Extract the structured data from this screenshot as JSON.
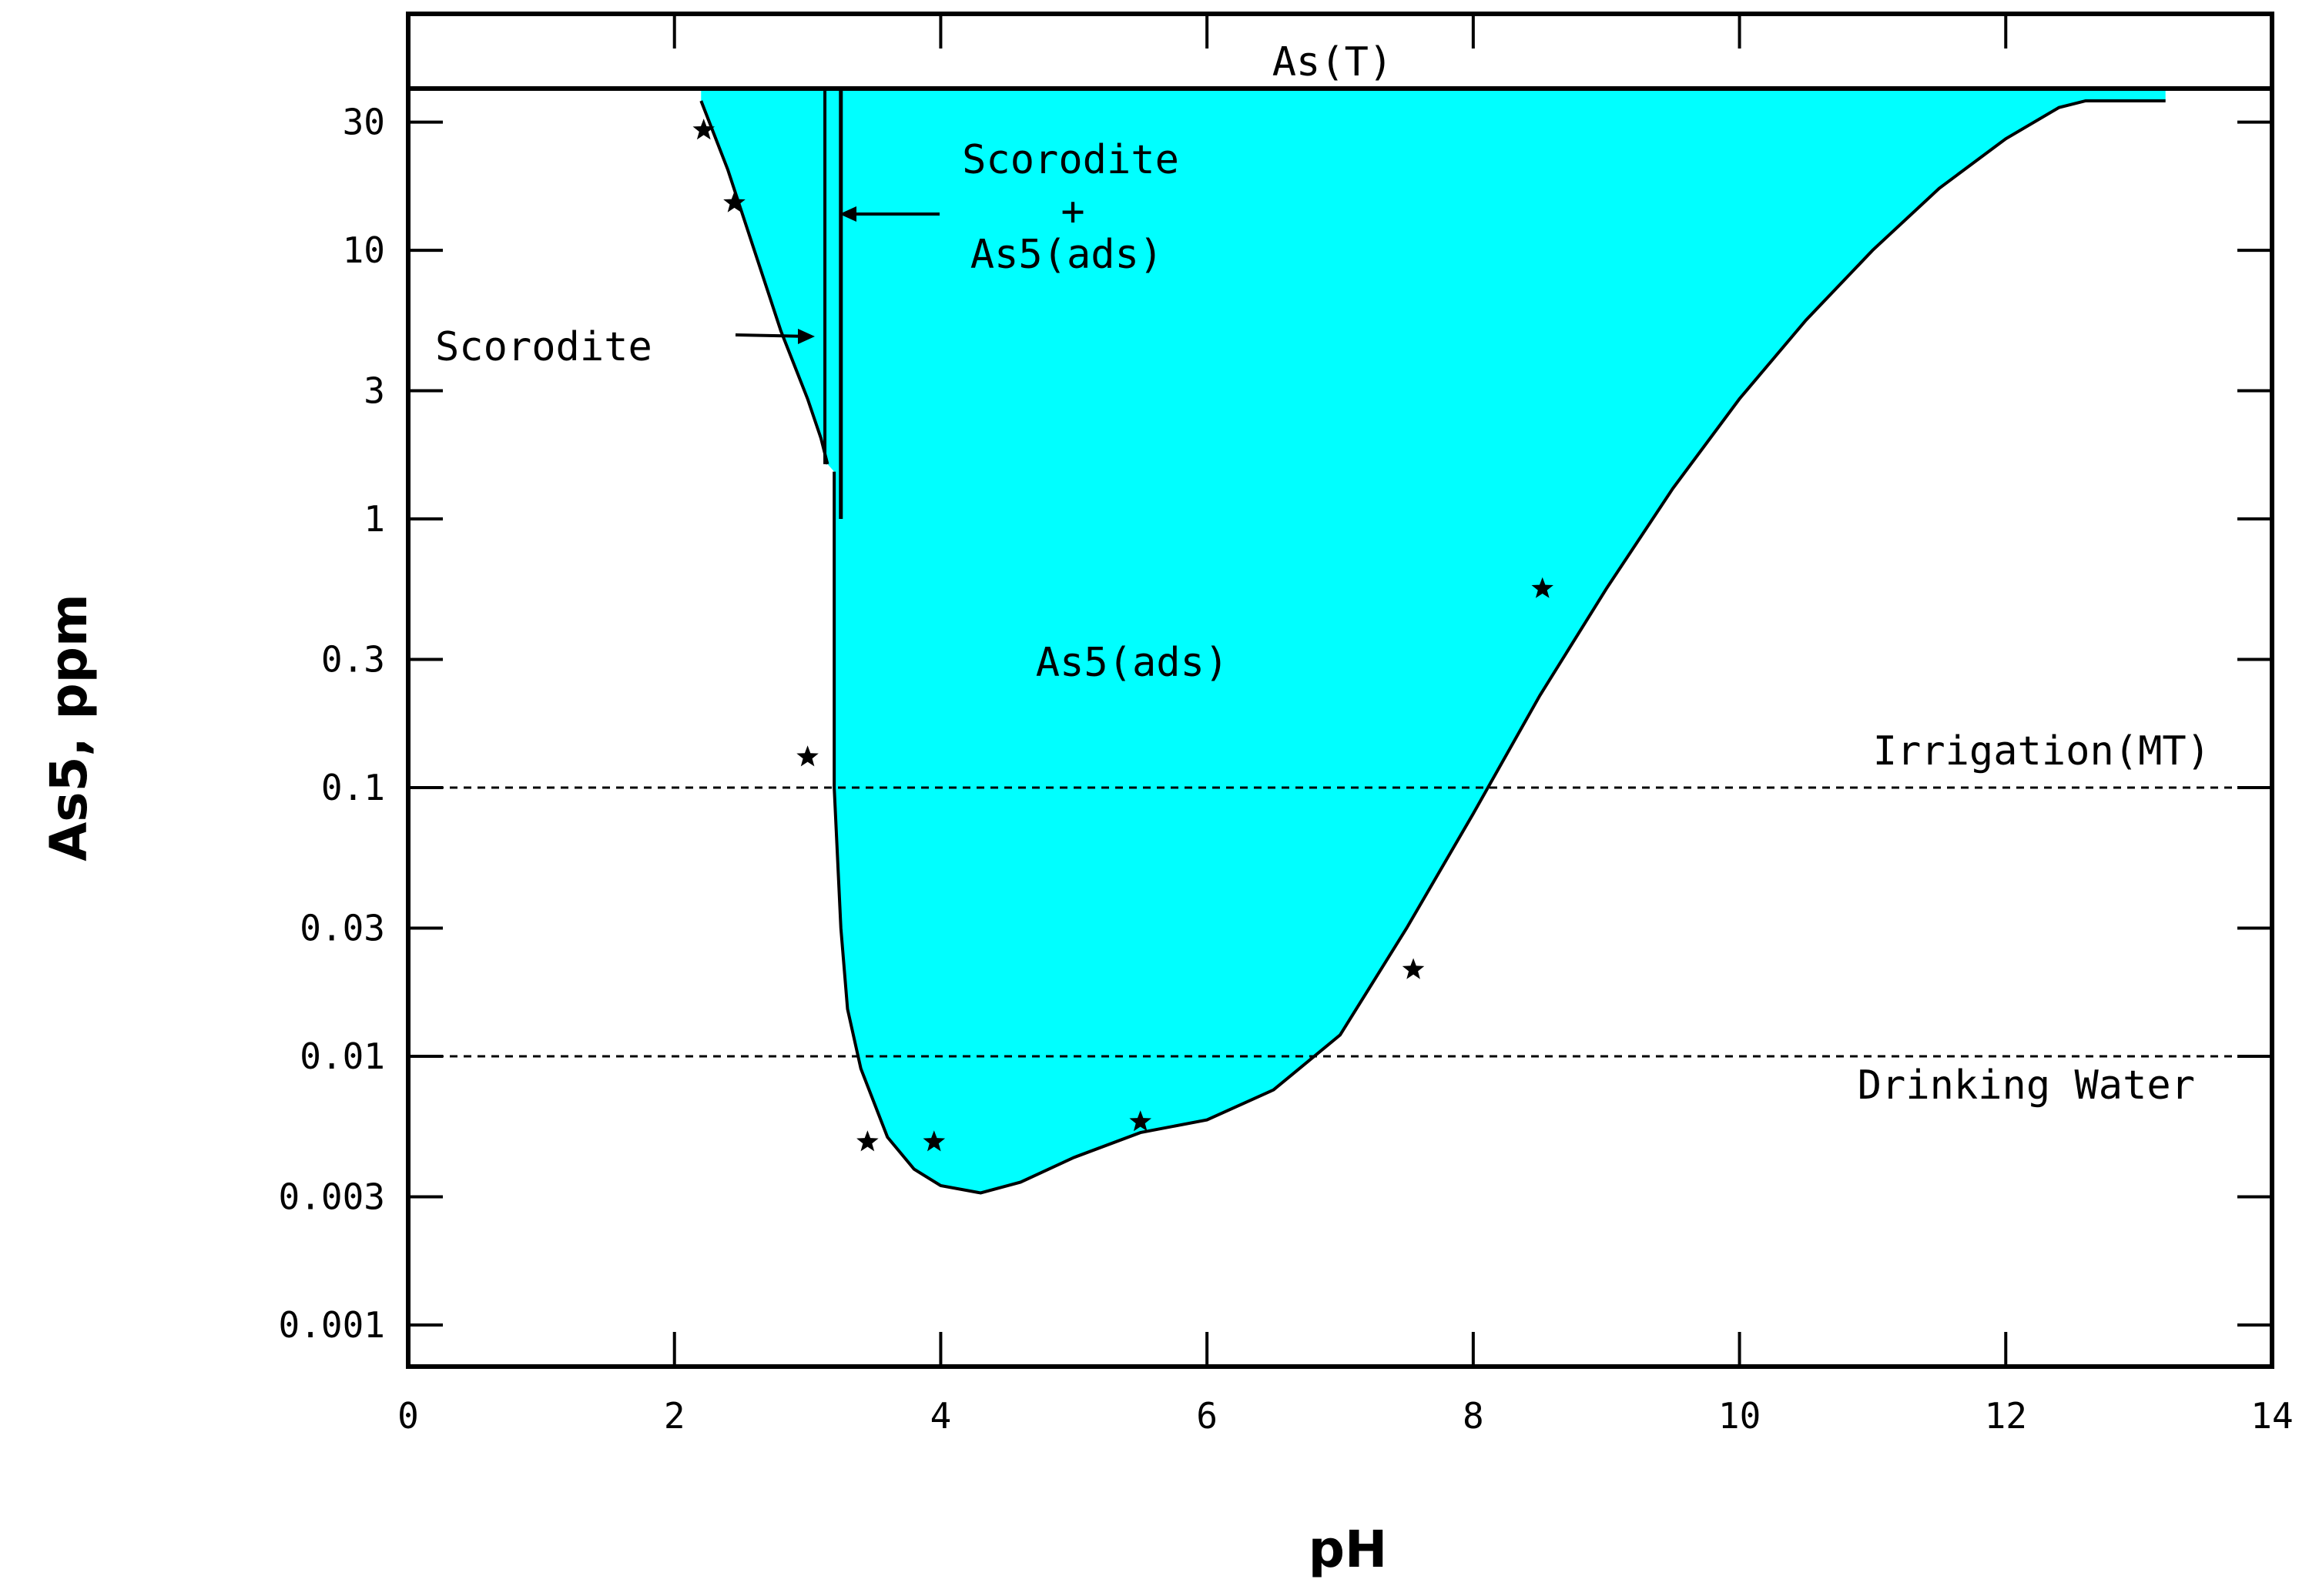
{
  "chart_data": {
    "type": "area",
    "xlabel": "pH",
    "ylabel": "As5, ppm",
    "xlim": [
      0,
      14
    ],
    "ylim": [
      0.0007,
      40
    ],
    "y_scale": "log",
    "grid": false,
    "x_ticks": [
      0,
      2,
      4,
      6,
      8,
      10,
      12,
      14
    ],
    "x_tick_labels": [
      "0",
      "2",
      "4",
      "6",
      "8",
      "10",
      "12",
      "14"
    ],
    "y_ticks": [
      0.001,
      0.003,
      0.01,
      0.03,
      0.1,
      0.3,
      1,
      3,
      10,
      30
    ],
    "y_tick_labels": [
      "0.001",
      "0.003",
      "0.01",
      "0.03",
      "0.1",
      "0.3",
      "1",
      "3",
      "10",
      "30"
    ],
    "top_band_label": "As(T)",
    "fill_color": "#00ffff",
    "scorodite_boundary": {
      "x": [
        2.2,
        2.4,
        2.6,
        2.8,
        3.0,
        3.1,
        3.15
      ],
      "y": [
        36,
        20,
        10,
        5,
        2.8,
        2.0,
        1.6
      ]
    },
    "ads_boundary": {
      "x": [
        3.2,
        3.2,
        3.25,
        3.3,
        3.4,
        3.6,
        3.8,
        4.0,
        4.3,
        4.6,
        5.0,
        5.5,
        6.0,
        6.5,
        7.0,
        7.5,
        8.0,
        8.5,
        9.0,
        9.5,
        10.0,
        10.5,
        11.0,
        11.5,
        12.0,
        12.4,
        12.6,
        13.2
      ],
      "y": [
        1.5,
        0.1,
        0.03,
        0.015,
        0.009,
        0.005,
        0.0038,
        0.0033,
        0.0031,
        0.0034,
        0.0042,
        0.0052,
        0.0058,
        0.0075,
        0.012,
        0.03,
        0.08,
        0.22,
        0.55,
        1.3,
        2.8,
        5.5,
        10,
        17,
        26,
        34,
        36,
        36
      ]
    },
    "reference_lines": [
      {
        "label": "Irrigation(MT)",
        "y": 0.1
      },
      {
        "label": "Drinking Water",
        "y": 0.01
      }
    ],
    "points": {
      "x": [
        2.22,
        2.45,
        3.0,
        3.45,
        3.95,
        5.5,
        7.55,
        8.52
      ],
      "y": [
        28,
        15,
        0.13,
        0.0048,
        0.0048,
        0.0057,
        0.021,
        0.55
      ]
    },
    "annotations": [
      {
        "text": "Scorodite",
        "x": 6.0,
        "y": 20
      },
      {
        "text": "+",
        "x": 5.0,
        "y": 13.5
      },
      {
        "text": "As5(ads)",
        "x": 4.9,
        "y": 9.5
      },
      {
        "text": "Scorodite",
        "x": 0.2,
        "y": 5
      },
      {
        "text": "As5(ads)",
        "x": 4.6,
        "y": 0.28
      }
    ]
  }
}
